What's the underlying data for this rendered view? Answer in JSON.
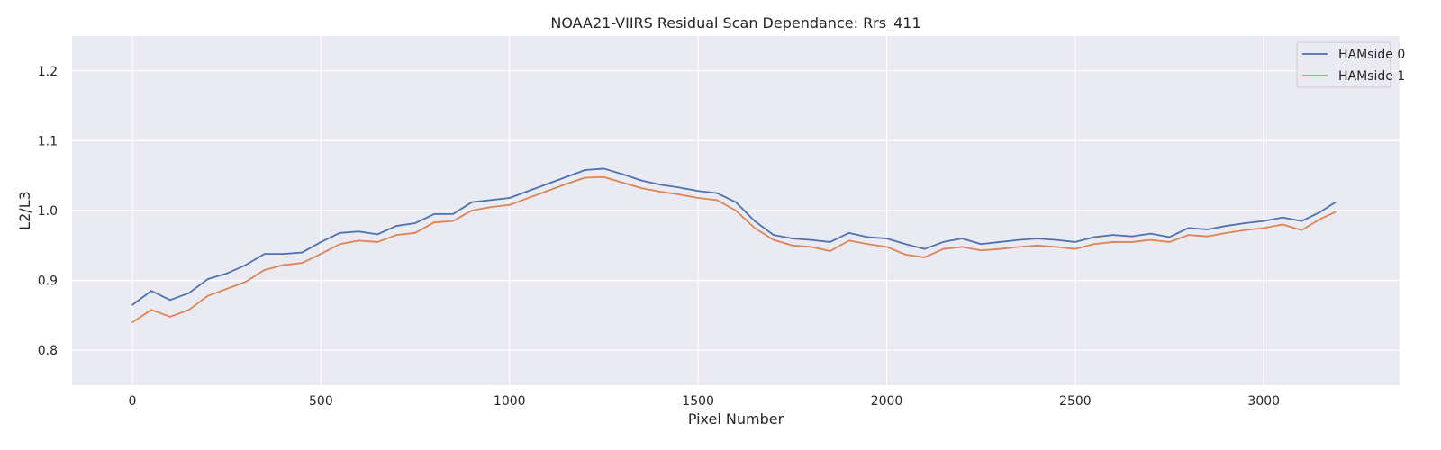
{
  "chart_data": {
    "type": "line",
    "title": "NOAA21-VIIRS Residual Scan Dependance: Rrs_411",
    "xlabel": "Pixel Number",
    "ylabel": "L2/L3",
    "xlim": [
      -160,
      3360
    ],
    "ylim": [
      0.75,
      1.25
    ],
    "xticks": [
      0,
      500,
      1000,
      1500,
      2000,
      2500,
      3000
    ],
    "xtick_labels": [
      "0",
      "500",
      "1000",
      "1500",
      "2000",
      "2500",
      "3000"
    ],
    "yticks": [
      0.8,
      0.9,
      1.0,
      1.1,
      1.2
    ],
    "ytick_labels": [
      "0.8",
      "0.9",
      "1.0",
      "1.1",
      "1.2"
    ],
    "grid": true,
    "legend_position": "top-right",
    "background_color": "#eaeaf2",
    "grid_color": "#ffffff",
    "x": [
      0,
      50,
      100,
      150,
      200,
      250,
      300,
      350,
      400,
      450,
      500,
      550,
      600,
      650,
      700,
      750,
      800,
      850,
      900,
      950,
      1000,
      1050,
      1100,
      1150,
      1200,
      1250,
      1300,
      1350,
      1400,
      1450,
      1500,
      1550,
      1600,
      1650,
      1700,
      1750,
      1800,
      1850,
      1900,
      1950,
      2000,
      2050,
      2100,
      2150,
      2200,
      2250,
      2300,
      2350,
      2400,
      2450,
      2500,
      2550,
      2600,
      2650,
      2700,
      2750,
      2800,
      2850,
      2900,
      2950,
      3000,
      3050,
      3100,
      3150,
      3190
    ],
    "series": [
      {
        "name": "HAMside 0",
        "color": "#4c72b0",
        "values": [
          0.865,
          0.885,
          0.872,
          0.882,
          0.902,
          0.91,
          0.922,
          0.938,
          0.938,
          0.94,
          0.955,
          0.968,
          0.97,
          0.966,
          0.978,
          0.982,
          0.995,
          0.995,
          1.012,
          1.015,
          1.018,
          1.028,
          1.038,
          1.048,
          1.058,
          1.06,
          1.052,
          1.043,
          1.037,
          1.033,
          1.028,
          1.025,
          1.012,
          0.985,
          0.965,
          0.96,
          0.958,
          0.955,
          0.968,
          0.962,
          0.96,
          0.952,
          0.945,
          0.955,
          0.96,
          0.952,
          0.955,
          0.958,
          0.96,
          0.958,
          0.955,
          0.962,
          0.965,
          0.963,
          0.967,
          0.962,
          0.975,
          0.973,
          0.978,
          0.982,
          0.985,
          0.99,
          0.985,
          0.998,
          1.012
        ]
      },
      {
        "name": "HAMside 1",
        "color": "#dd8452",
        "values": [
          0.84,
          0.858,
          0.848,
          0.858,
          0.878,
          0.888,
          0.898,
          0.915,
          0.922,
          0.925,
          0.938,
          0.952,
          0.957,
          0.955,
          0.965,
          0.968,
          0.983,
          0.985,
          1.0,
          1.005,
          1.008,
          1.018,
          1.028,
          1.038,
          1.047,
          1.048,
          1.04,
          1.032,
          1.027,
          1.023,
          1.018,
          1.015,
          1.0,
          0.975,
          0.958,
          0.95,
          0.948,
          0.942,
          0.957,
          0.952,
          0.948,
          0.937,
          0.933,
          0.945,
          0.948,
          0.943,
          0.945,
          0.948,
          0.95,
          0.948,
          0.945,
          0.952,
          0.955,
          0.955,
          0.958,
          0.955,
          0.965,
          0.963,
          0.968,
          0.972,
          0.975,
          0.98,
          0.972,
          0.988,
          0.998
        ]
      }
    ]
  }
}
